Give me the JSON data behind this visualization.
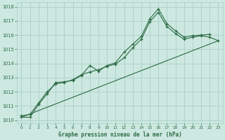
{
  "bg_color": "#cce8e0",
  "grid_color": "#aacfc8",
  "line_color": "#2d6b45",
  "title": "Graphe pression niveau de la mer (hPa)",
  "xlim": [
    -0.5,
    23.5
  ],
  "ylim": [
    1009.8,
    1018.3
  ],
  "xticks": [
    0,
    1,
    2,
    3,
    4,
    5,
    6,
    7,
    8,
    9,
    10,
    11,
    12,
    13,
    14,
    15,
    16,
    17,
    18,
    19,
    20,
    21,
    22,
    23
  ],
  "yticks": [
    1010,
    1011,
    1012,
    1013,
    1014,
    1015,
    1016,
    1017,
    1018
  ],
  "series1_x": [
    0,
    1,
    2,
    3,
    4,
    5,
    6,
    7,
    8,
    9,
    10,
    11,
    12,
    13,
    14,
    15,
    16,
    17,
    18,
    19,
    20,
    21,
    22
  ],
  "series1_y": [
    1010.2,
    1010.2,
    1011.1,
    1011.85,
    1012.65,
    1012.7,
    1012.8,
    1013.15,
    1013.85,
    1013.45,
    1013.85,
    1014.05,
    1014.8,
    1015.35,
    1015.9,
    1017.15,
    1017.85,
    1016.8,
    1016.3,
    1015.85,
    1015.95,
    1016.0,
    1016.05
  ],
  "series2_x": [
    0,
    1,
    2,
    3,
    4,
    5,
    6,
    7,
    8,
    9,
    10,
    11,
    12,
    13,
    14,
    15,
    16,
    17,
    18,
    19,
    20,
    21,
    22,
    23
  ],
  "series2_y": [
    1010.3,
    1010.4,
    1011.2,
    1012.0,
    1012.55,
    1012.65,
    1012.85,
    1013.2,
    1013.4,
    1013.55,
    1013.8,
    1013.95,
    1014.4,
    1015.1,
    1015.7,
    1016.95,
    1017.6,
    1016.6,
    1016.1,
    1015.7,
    1015.85,
    1015.95,
    1015.85,
    1015.6
  ],
  "series3_x": [
    0,
    23
  ],
  "series3_y": [
    1010.2,
    1015.6
  ]
}
